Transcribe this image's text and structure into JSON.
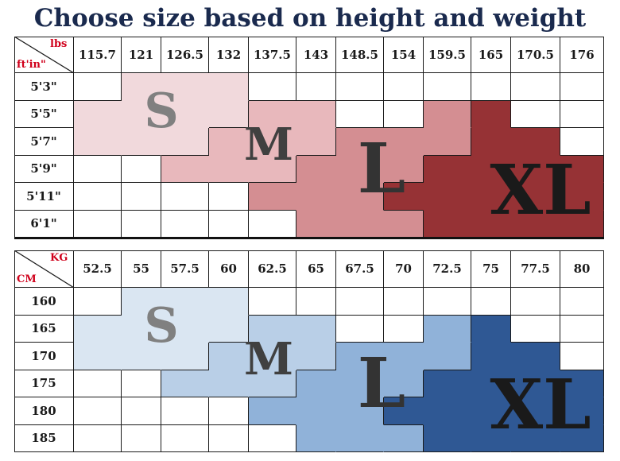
{
  "title": "Choose size based on height and weight",
  "imperial": {
    "unit_top": "lbs",
    "unit_left": "ft'in\"",
    "weights": [
      "115.7",
      "121",
      "126.5",
      "132",
      "137.5",
      "143",
      "148.5",
      "154",
      "159.5",
      "165",
      "170.5",
      "176"
    ],
    "heights": [
      "5'3\"",
      "5'5\"",
      "5'7\"",
      "5'9\"",
      "5'11\"",
      "6'1\""
    ],
    "sizes": [
      {
        "label": "S",
        "color": "#f1d9dc",
        "text_color": "#808080"
      },
      {
        "label": "M",
        "color": "#e8b8bc",
        "text_color": "#404040"
      },
      {
        "label": "L",
        "color": "#d48e92",
        "text_color": "#333333"
      },
      {
        "label": "XL",
        "color": "#963235",
        "text_color": "#1a1a1a"
      }
    ]
  },
  "metric": {
    "unit_top": "KG",
    "unit_left": "CM",
    "weights": [
      "52.5",
      "55",
      "57.5",
      "60",
      "62.5",
      "65",
      "67.5",
      "70",
      "72.5",
      "75",
      "77.5",
      "80"
    ],
    "heights": [
      "160",
      "165",
      "170",
      "175",
      "180",
      "185"
    ],
    "sizes": [
      {
        "label": "S",
        "color": "#dae6f2",
        "text_color": "#808080"
      },
      {
        "label": "M",
        "color": "#b9cfe7",
        "text_color": "#404040"
      },
      {
        "label": "L",
        "color": "#90b2d9",
        "text_color": "#333333"
      },
      {
        "label": "XL",
        "color": "#2f5894",
        "text_color": "#1a1a1a"
      }
    ]
  }
}
